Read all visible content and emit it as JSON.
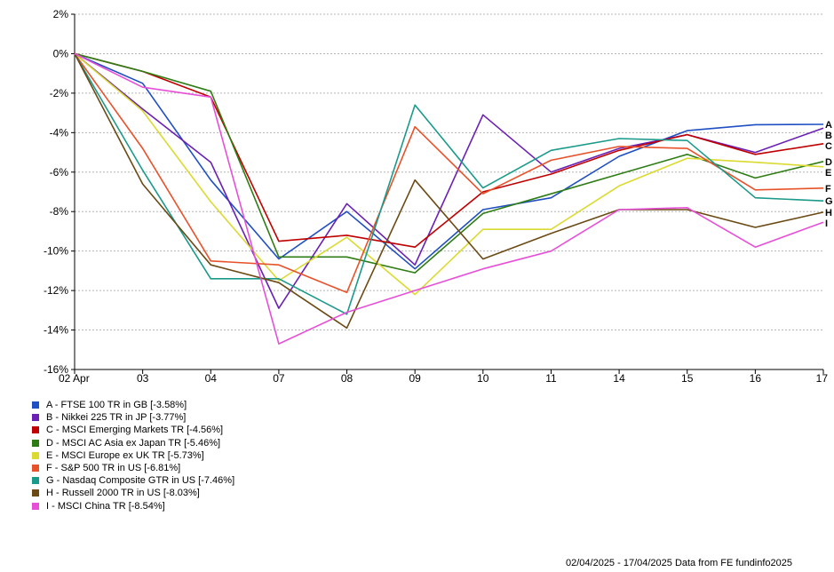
{
  "chart_data": {
    "type": "line",
    "x": [
      "02 Apr",
      "03",
      "04",
      "07",
      "08",
      "09",
      "10",
      "11",
      "14",
      "15",
      "16",
      "17"
    ],
    "ylim": [
      -16,
      2
    ],
    "yticks": [
      2,
      0,
      -2,
      -4,
      -6,
      -8,
      -10,
      -12,
      -14,
      -16
    ],
    "ytick_labels": [
      "2%",
      "0%",
      "-2%",
      "-4%",
      "-6%",
      "-8%",
      "-10%",
      "-12%",
      "-14%",
      "-16%"
    ],
    "grid": "horizontal dashed",
    "series": [
      {
        "name": "A - FTSE 100 TR in GB [-3.58%]",
        "end_label": "A",
        "color": "#1f4fc4",
        "values": [
          0,
          -1.5,
          -6.4,
          -10.4,
          -8.0,
          -10.9,
          -7.9,
          -7.3,
          -5.2,
          -3.9,
          -3.6,
          -3.58
        ]
      },
      {
        "name": "B - Nikkei 225 TR in JP [-3.77%]",
        "end_label": "B",
        "color": "#6a1fb5",
        "values": [
          0,
          -2.8,
          -5.5,
          -12.9,
          -7.6,
          -10.7,
          -3.1,
          -6.0,
          -4.8,
          -4.1,
          -5.0,
          -3.77
        ]
      },
      {
        "name": "C - MSCI Emerging Markets TR [-4.56%]",
        "end_label": "C",
        "color": "#c00000",
        "values": [
          0,
          -0.9,
          -2.2,
          -9.5,
          -9.2,
          -9.8,
          -7.0,
          -6.1,
          -4.9,
          -4.1,
          -5.1,
          -4.56
        ]
      },
      {
        "name": "D - MSCI AC Asia ex Japan TR [-5.46%]",
        "end_label": "D",
        "color": "#2e7d14",
        "values": [
          0,
          -0.9,
          -1.9,
          -10.3,
          -10.3,
          -11.1,
          -8.1,
          -7.1,
          -6.1,
          -5.1,
          -6.3,
          -5.46
        ]
      },
      {
        "name": "E - MSCI Europe ex UK TR [-5.73%]",
        "end_label": "E",
        "color": "#dada30",
        "values": [
          0,
          -2.9,
          -7.5,
          -11.5,
          -9.3,
          -12.2,
          -8.9,
          -8.9,
          -6.7,
          -5.3,
          -5.5,
          -5.73
        ]
      },
      {
        "name": "F - S&P 500 TR in US [-6.81%]",
        "end_label": "F",
        "color": "#e8522a",
        "values": [
          0,
          -4.8,
          -10.5,
          -10.7,
          -12.1,
          -3.7,
          -7.1,
          -5.4,
          -4.7,
          -4.8,
          -6.9,
          -6.81
        ]
      },
      {
        "name": "G - Nasdaq Composite GTR in US [-7.46%]",
        "end_label": "G",
        "color": "#1a9a8a",
        "values": [
          0,
          -5.9,
          -11.4,
          -11.4,
          -13.2,
          -2.6,
          -6.8,
          -4.9,
          -4.3,
          -4.4,
          -7.3,
          -7.46
        ]
      },
      {
        "name": "H - Russell 2000 TR in US [-8.03%]",
        "end_label": "H",
        "color": "#6b4a14",
        "values": [
          0,
          -6.6,
          -10.7,
          -11.6,
          -13.9,
          -6.4,
          -10.4,
          -9.1,
          -7.9,
          -7.9,
          -8.8,
          -8.03
        ]
      },
      {
        "name": "I - MSCI China TR [-8.54%]",
        "end_label": "I",
        "color": "#e84fd8",
        "values": [
          0,
          -1.7,
          -2.2,
          -14.7,
          -13.1,
          -12.0,
          -10.9,
          -10.0,
          -7.9,
          -7.8,
          -9.8,
          -8.54
        ]
      }
    ]
  },
  "footer": "02/04/2025 - 17/04/2025 Data from FE fundinfo2025"
}
